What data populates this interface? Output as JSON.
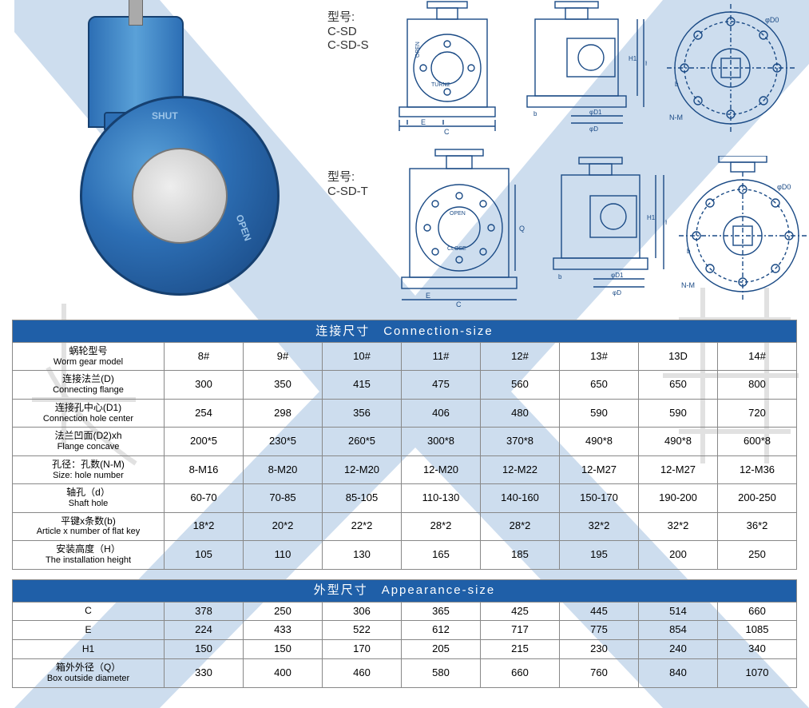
{
  "models": {
    "label_cn": "型号:",
    "row1_a": "C-SD",
    "row1_b": "C-SD-S",
    "row2": "C-SD-T"
  },
  "product_markings": {
    "shut": "SHUT",
    "open": "OPEN"
  },
  "table1": {
    "header": "连接尺寸 Connection-size",
    "rows": [
      {
        "label_cn": "蜗轮型号",
        "label_en": "Worm gear model",
        "cells": [
          "8#",
          "9#",
          "10#",
          "11#",
          "12#",
          "13#",
          "13D",
          "14#"
        ]
      },
      {
        "label_cn": "连接法兰(D)",
        "label_en": "Connecting flange",
        "cells": [
          "300",
          "350",
          "415",
          "475",
          "560",
          "650",
          "650",
          "800"
        ]
      },
      {
        "label_cn": "连接孔中心(D1)",
        "label_en": "Connection hole center",
        "cells": [
          "254",
          "298",
          "356",
          "406",
          "480",
          "590",
          "590",
          "720"
        ]
      },
      {
        "label_cn": "法兰凹面(D2)xh",
        "label_en": "Flange concave",
        "cells": [
          "200*5",
          "230*5",
          "260*5",
          "300*8",
          "370*8",
          "490*8",
          "490*8",
          "600*8"
        ]
      },
      {
        "label_cn": "孔径：孔数(N-M)",
        "label_en": "Size: hole number",
        "cells": [
          "8-M16",
          "8-M20",
          "12-M20",
          "12-M20",
          "12-M22",
          "12-M27",
          "12-M27",
          "12-M36"
        ]
      },
      {
        "label_cn": "轴孔（d）",
        "label_en": "Shaft hole",
        "cells": [
          "60-70",
          "70-85",
          "85-105",
          "110-130",
          "140-160",
          "150-170",
          "190-200",
          "200-250"
        ]
      },
      {
        "label_cn": "平键x条数(b)",
        "label_en": "Article x number of flat key",
        "cells": [
          "18*2",
          "20*2",
          "22*2",
          "28*2",
          "28*2",
          "32*2",
          "32*2",
          "36*2"
        ]
      },
      {
        "label_cn": "安装高度（H）",
        "label_en": "The installation height",
        "cells": [
          "105",
          "110",
          "130",
          "165",
          "185",
          "195",
          "200",
          "250"
        ]
      }
    ]
  },
  "table2": {
    "header": "外型尺寸 Appearance-size",
    "rows": [
      {
        "label_cn": "C",
        "label_en": "",
        "cells": [
          "378",
          "250",
          "306",
          "365",
          "425",
          "445",
          "514",
          "660"
        ]
      },
      {
        "label_cn": "E",
        "label_en": "",
        "cells": [
          "224",
          "433",
          "522",
          "612",
          "717",
          "775",
          "854",
          "1085"
        ]
      },
      {
        "label_cn": "H1",
        "label_en": "",
        "cells": [
          "150",
          "150",
          "170",
          "205",
          "215",
          "230",
          "240",
          "340"
        ]
      },
      {
        "label_cn": "箱外外径（Q）",
        "label_en": "Box outside diameter",
        "cells": [
          "330",
          "400",
          "460",
          "580",
          "660",
          "760",
          "840",
          "1070"
        ]
      }
    ]
  },
  "drawing_labels": {
    "phi_d0": "φD0",
    "phi_d1": "φD1",
    "phi_d": "φD",
    "n_m": "N-M",
    "h1": "H1",
    "h": "H",
    "b": "b",
    "c": "C",
    "e": "E",
    "q": "Q",
    "open": "OPEN",
    "close": "CLOSE",
    "turn2": "TURN2"
  },
  "colors": {
    "header_bg": "#1f5fa8",
    "border": "#888888",
    "watermark": "#5a8fc8",
    "drawing_line": "#1a4a85"
  }
}
